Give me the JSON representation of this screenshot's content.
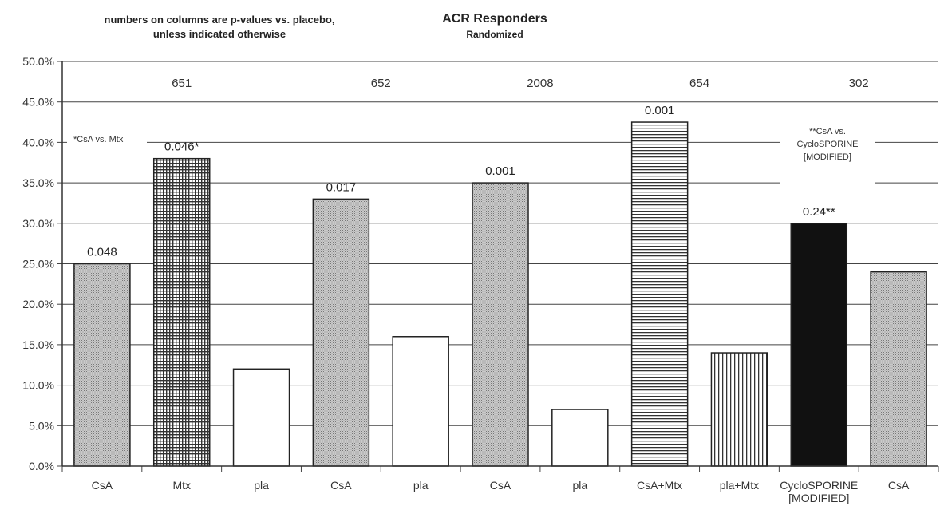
{
  "chart_data": {
    "type": "bar",
    "title": "ACR Responders",
    "subtitle": "Randomized",
    "note": [
      "numbers on columns are p-values vs. placebo,",
      "unless indicated otherwise"
    ],
    "ylim": [
      0,
      50
    ],
    "y_ticks": [
      "0.0%",
      "5.0%",
      "10.0%",
      "15.0%",
      "20.0%",
      "25.0%",
      "30.0%",
      "35.0%",
      "40.0%",
      "45.0%",
      "50.0%"
    ],
    "grid": true,
    "categories": [
      "CsA",
      "Mtx",
      "pla",
      "CsA",
      "pla",
      "CsA",
      "pla",
      "CsA+Mtx",
      "pla+Mtx",
      "CycloSPORINE [MODIFIED]",
      "CsA"
    ],
    "category_lines": [
      [
        "CsA"
      ],
      [
        "Mtx"
      ],
      [
        "pla"
      ],
      [
        "CsA"
      ],
      [
        "pla"
      ],
      [
        "CsA"
      ],
      [
        "pla"
      ],
      [
        "CsA+Mtx"
      ],
      [
        "pla+Mtx"
      ],
      [
        "CycloSPORINE",
        "[MODIFIED]"
      ],
      [
        "CsA"
      ]
    ],
    "values": [
      25,
      38,
      12,
      33,
      16,
      35,
      7,
      42.5,
      14,
      30,
      24
    ],
    "patterns": [
      "dots",
      "grid",
      "white",
      "dots",
      "white",
      "dots",
      "white",
      "hlines",
      "vlines",
      "black",
      "dots"
    ],
    "bar_labels": [
      "0.048",
      "0.046*",
      "",
      "0.017",
      "",
      "0.001",
      "",
      "0.001",
      "",
      "0.24**",
      ""
    ],
    "studies": [
      {
        "label": "651",
        "bars": [
          0,
          1,
          2
        ]
      },
      {
        "label": "652",
        "bars": [
          3,
          4
        ]
      },
      {
        "label": "2008",
        "bars": [
          5,
          6
        ]
      },
      {
        "label": "654",
        "bars": [
          7,
          8
        ]
      },
      {
        "label": "302",
        "bars": [
          9,
          10
        ]
      }
    ],
    "annotations": {
      "csa_vs_mtx": "*CsA vs. Mtx",
      "csa_vs_cyclo": [
        "**CsA vs.",
        "CycloSPORINE",
        "[MODIFIED]"
      ]
    }
  }
}
